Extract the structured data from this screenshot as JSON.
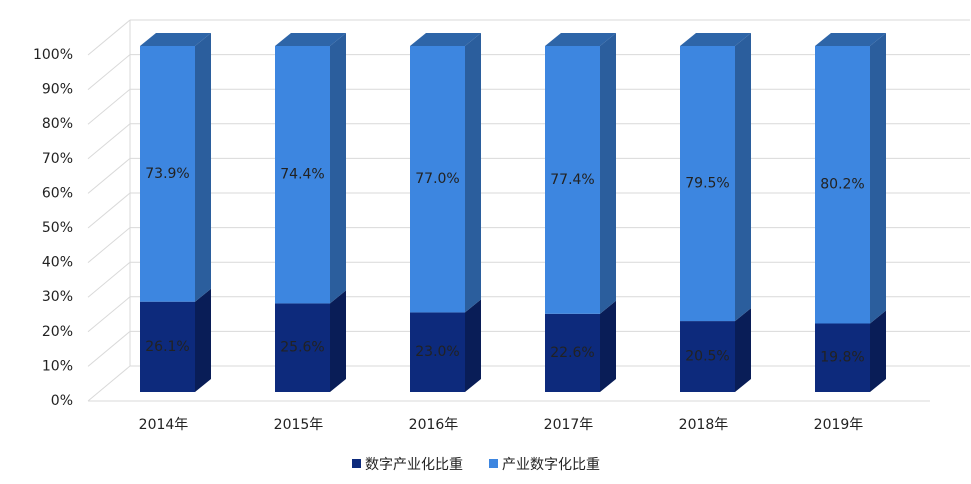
{
  "chart_data": {
    "type": "bar3d_stacked",
    "categories": [
      "2014年",
      "2015年",
      "2016年",
      "2017年",
      "2018年",
      "2019年"
    ],
    "series": [
      {
        "name": "数字产业化比重",
        "color": "#0d2a7c",
        "values": [
          26.1,
          25.6,
          23.0,
          22.6,
          20.5,
          19.8
        ],
        "value_labels": [
          "26.1%",
          "25.6%",
          "23.0%",
          "22.6%",
          "20.5%",
          "19.8%"
        ]
      },
      {
        "name": "产业数字化比重",
        "color": "#3d86e0",
        "values": [
          73.9,
          74.4,
          77.0,
          77.4,
          79.5,
          80.2
        ],
        "value_labels": [
          "73.9%",
          "74.4%",
          "77.0%",
          "77.4%",
          "79.5%",
          "80.2%"
        ]
      }
    ],
    "ylim": [
      0,
      100
    ],
    "yticks": [
      {
        "value": 0,
        "label": "0%"
      },
      {
        "value": 10,
        "label": "10%"
      },
      {
        "value": 20,
        "label": "20%"
      },
      {
        "value": 30,
        "label": "30%"
      },
      {
        "value": 40,
        "label": "40%"
      },
      {
        "value": 50,
        "label": "50%"
      },
      {
        "value": 60,
        "label": "60%"
      },
      {
        "value": 70,
        "label": "70%"
      },
      {
        "value": 80,
        "label": "80%"
      },
      {
        "value": 90,
        "label": "90%"
      },
      {
        "value": 100,
        "label": "100%"
      }
    ],
    "grid": true,
    "legend": "bottom"
  }
}
